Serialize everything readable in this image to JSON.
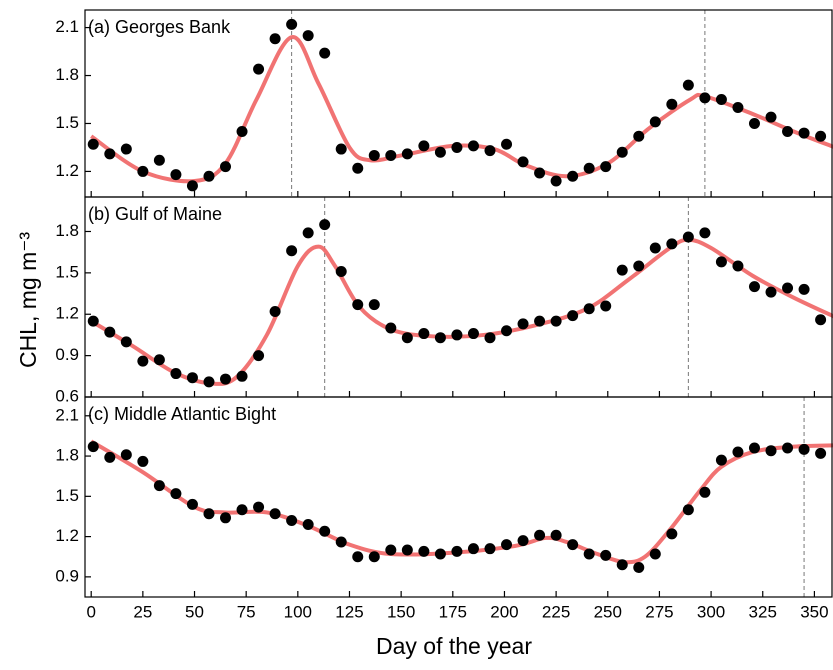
{
  "shared": {
    "xlabel": "Day of the year",
    "ylabel": "CHL, mg m⁻³",
    "xlim": [
      -3,
      359
    ],
    "xticks": [
      0,
      25,
      50,
      75,
      100,
      125,
      150,
      175,
      200,
      225,
      250,
      275,
      300,
      325,
      350
    ]
  },
  "chart_data": [
    {
      "type": "scatter",
      "title": "(a) Georges Bank",
      "ylim": [
        1.04,
        2.21
      ],
      "yticks": [
        1.2,
        1.5,
        1.8,
        2.1
      ],
      "vlines": [
        97,
        297
      ],
      "series": [
        {
          "kind": "points",
          "color": "#000000",
          "x": [
            1,
            9,
            17,
            25,
            33,
            41,
            49,
            57,
            65,
            73,
            81,
            89,
            97,
            105,
            113,
            121,
            129,
            137,
            145,
            153,
            161,
            169,
            177,
            185,
            193,
            201,
            209,
            217,
            225,
            233,
            241,
            249,
            257,
            265,
            273,
            281,
            289,
            297,
            305,
            313,
            321,
            329,
            337,
            345,
            353
          ],
          "values": [
            1.37,
            1.31,
            1.34,
            1.2,
            1.27,
            1.18,
            1.11,
            1.17,
            1.23,
            1.45,
            1.84,
            2.03,
            2.12,
            2.05,
            1.94,
            1.34,
            1.22,
            1.3,
            1.3,
            1.31,
            1.36,
            1.32,
            1.35,
            1.36,
            1.33,
            1.37,
            1.26,
            1.19,
            1.14,
            1.17,
            1.22,
            1.23,
            1.32,
            1.42,
            1.51,
            1.62,
            1.74,
            1.66,
            1.65,
            1.6,
            1.5,
            1.54,
            1.45,
            1.44,
            1.42
          ]
        },
        {
          "kind": "line",
          "color": "#f06464",
          "x": [
            0,
            25,
            50,
            65,
            80,
            97,
            110,
            125,
            135,
            150,
            175,
            195,
            210,
            230,
            250,
            270,
            290,
            297,
            320,
            340,
            360
          ],
          "values": [
            1.42,
            1.2,
            1.14,
            1.25,
            1.65,
            2.04,
            1.75,
            1.35,
            1.27,
            1.3,
            1.36,
            1.34,
            1.24,
            1.17,
            1.25,
            1.47,
            1.65,
            1.67,
            1.56,
            1.45,
            1.35
          ]
        }
      ]
    },
    {
      "type": "scatter",
      "title": "(b) Gulf of Maine",
      "ylim": [
        0.6,
        2.05
      ],
      "yticks": [
        0.6,
        0.9,
        1.2,
        1.5,
        1.8
      ],
      "vlines": [
        113,
        289
      ],
      "series": [
        {
          "kind": "points",
          "color": "#000000",
          "x": [
            1,
            9,
            17,
            25,
            33,
            41,
            49,
            57,
            65,
            73,
            81,
            89,
            97,
            105,
            113,
            121,
            129,
            137,
            145,
            153,
            161,
            169,
            177,
            185,
            193,
            201,
            209,
            217,
            225,
            233,
            241,
            249,
            257,
            265,
            273,
            281,
            289,
            297,
            305,
            313,
            321,
            329,
            337,
            345,
            353
          ],
          "values": [
            1.15,
            1.07,
            1.0,
            0.86,
            0.87,
            0.77,
            0.74,
            0.71,
            0.73,
            0.75,
            0.9,
            1.22,
            1.66,
            1.79,
            1.85,
            1.51,
            1.27,
            1.27,
            1.1,
            1.03,
            1.06,
            1.03,
            1.05,
            1.06,
            1.03,
            1.08,
            1.13,
            1.15,
            1.15,
            1.19,
            1.24,
            1.26,
            1.52,
            1.55,
            1.68,
            1.71,
            1.76,
            1.79,
            1.58,
            1.55,
            1.4,
            1.36,
            1.39,
            1.38,
            1.16
          ]
        },
        {
          "kind": "line",
          "color": "#f06464",
          "x": [
            0,
            20,
            40,
            57,
            70,
            85,
            100,
            110,
            118,
            130,
            145,
            165,
            190,
            215,
            240,
            260,
            280,
            289,
            300,
            320,
            340,
            360
          ],
          "values": [
            1.15,
            0.97,
            0.78,
            0.7,
            0.74,
            1.05,
            1.55,
            1.69,
            1.55,
            1.25,
            1.09,
            1.04,
            1.05,
            1.12,
            1.24,
            1.45,
            1.68,
            1.74,
            1.68,
            1.48,
            1.32,
            1.18
          ]
        }
      ]
    },
    {
      "type": "scatter",
      "title": "(c) Middle Atlantic Bight",
      "ylim": [
        0.75,
        2.24
      ],
      "yticks": [
        0.9,
        1.2,
        1.5,
        1.8,
        2.1
      ],
      "vlines": [
        345
      ],
      "series": [
        {
          "kind": "points",
          "color": "#000000",
          "x": [
            1,
            9,
            17,
            25,
            33,
            41,
            49,
            57,
            65,
            73,
            81,
            89,
            97,
            105,
            113,
            121,
            129,
            137,
            145,
            153,
            161,
            169,
            177,
            185,
            193,
            201,
            209,
            217,
            225,
            233,
            241,
            249,
            257,
            265,
            273,
            281,
            289,
            297,
            305,
            313,
            321,
            329,
            337,
            345,
            353
          ],
          "values": [
            1.87,
            1.79,
            1.81,
            1.76,
            1.58,
            1.52,
            1.44,
            1.37,
            1.34,
            1.4,
            1.42,
            1.37,
            1.32,
            1.29,
            1.24,
            1.16,
            1.05,
            1.05,
            1.1,
            1.1,
            1.09,
            1.07,
            1.09,
            1.11,
            1.11,
            1.14,
            1.17,
            1.21,
            1.21,
            1.14,
            1.07,
            1.06,
            0.99,
            0.97,
            1.07,
            1.22,
            1.4,
            1.53,
            1.77,
            1.83,
            1.86,
            1.84,
            1.86,
            1.85,
            1.82
          ]
        },
        {
          "kind": "line",
          "color": "#f06464",
          "x": [
            0,
            25,
            50,
            65,
            85,
            105,
            125,
            145,
            175,
            205,
            220,
            230,
            245,
            258,
            268,
            280,
            295,
            305,
            320,
            340,
            360
          ],
          "values": [
            1.91,
            1.68,
            1.42,
            1.38,
            1.38,
            1.28,
            1.14,
            1.07,
            1.08,
            1.13,
            1.19,
            1.16,
            1.07,
            1.01,
            1.05,
            1.25,
            1.55,
            1.72,
            1.83,
            1.87,
            1.88
          ]
        }
      ]
    }
  ]
}
